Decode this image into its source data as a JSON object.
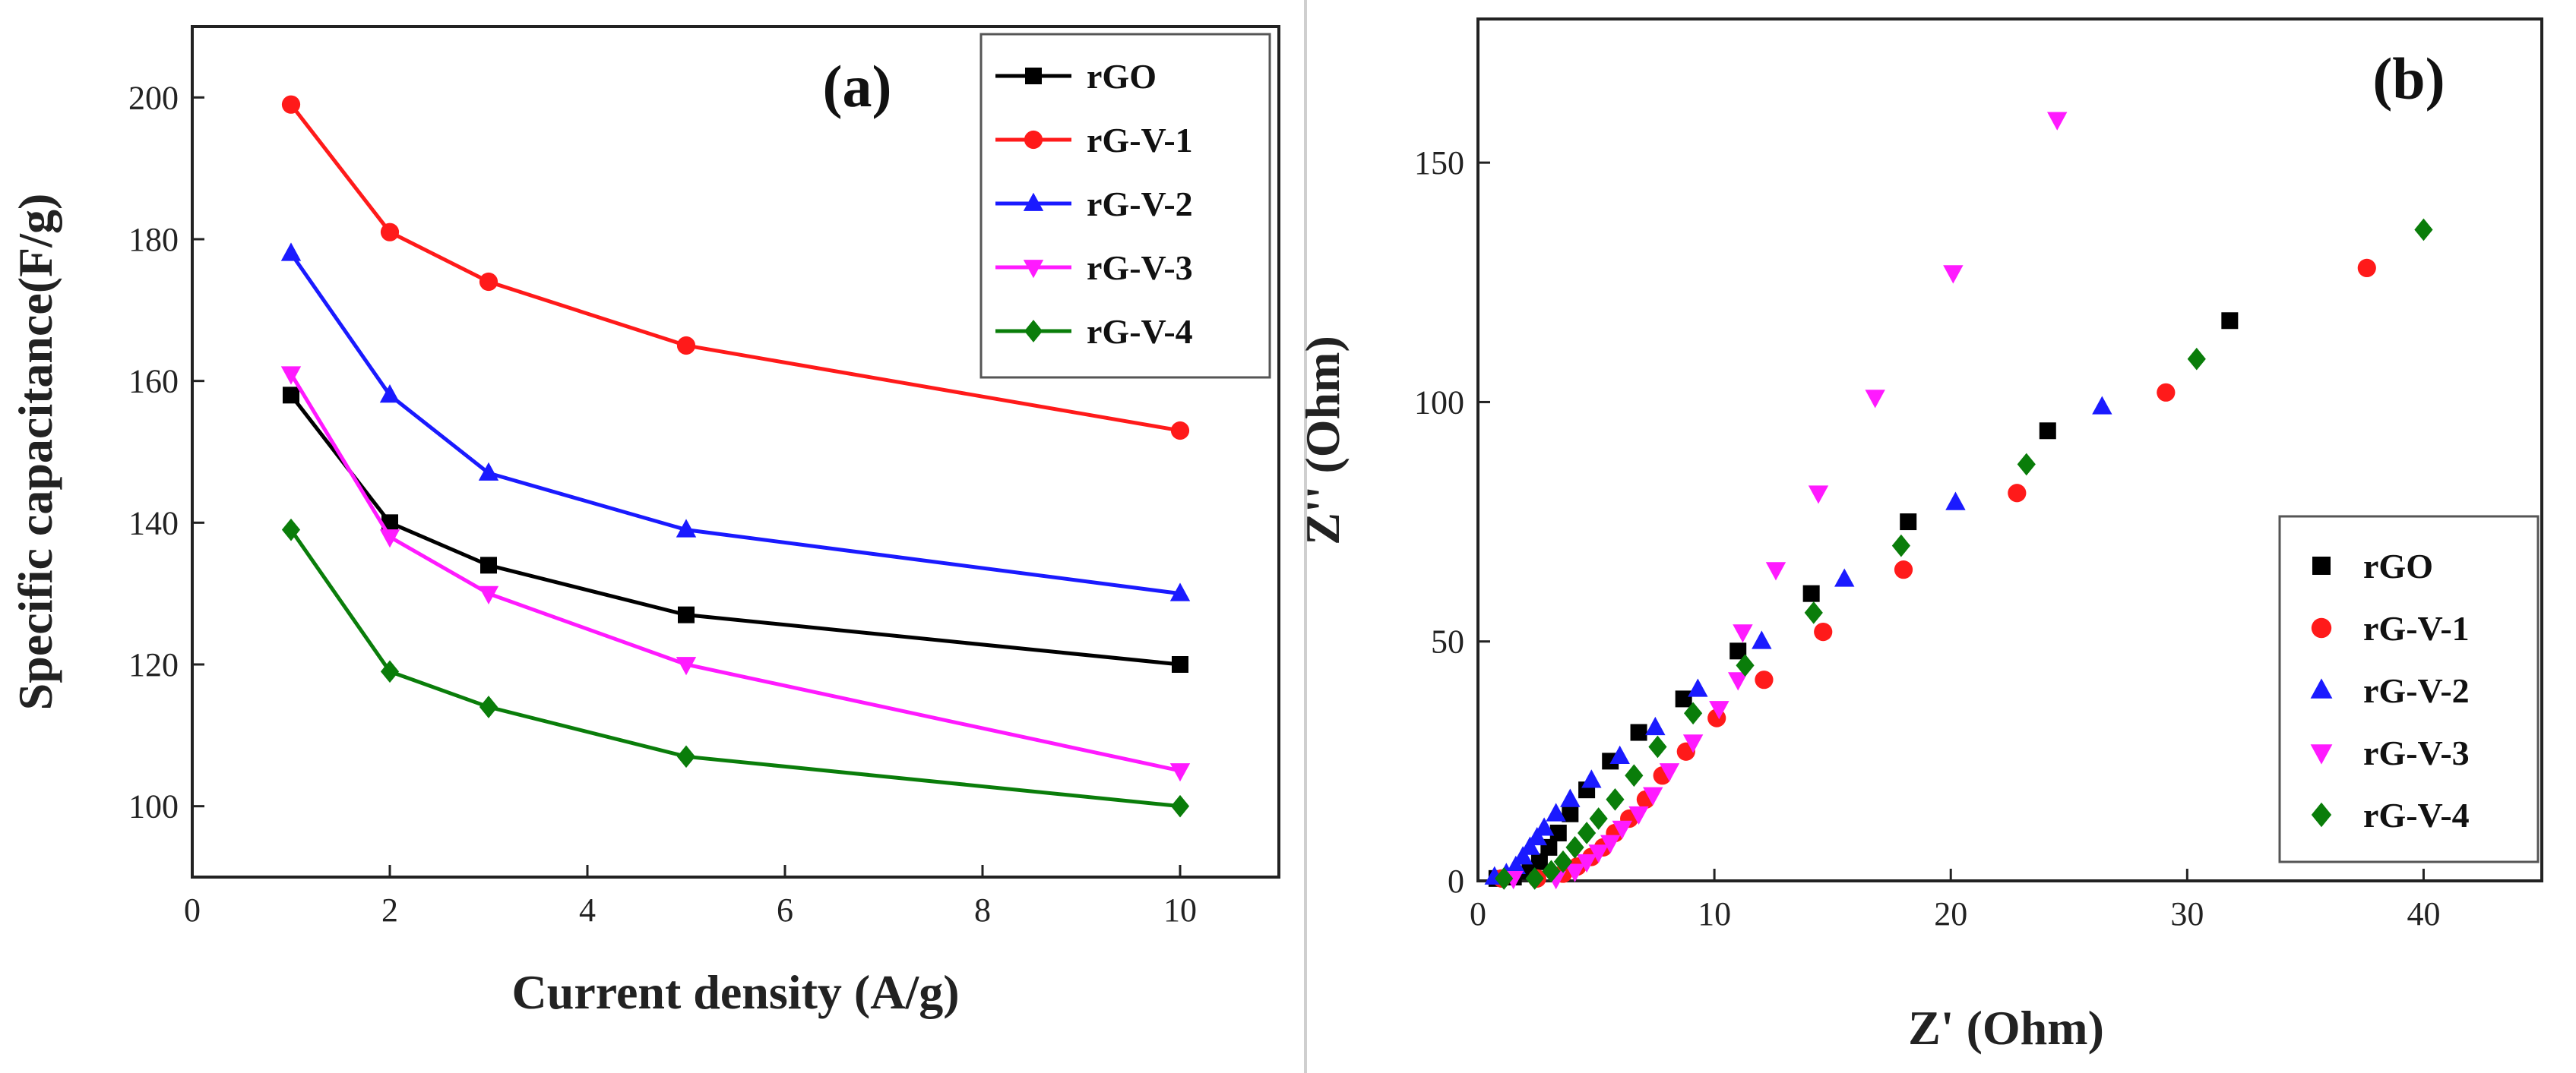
{
  "chart_data": [
    {
      "type": "line",
      "panel_label": "(a)",
      "xlabel": "Current density (A/g)",
      "ylabel": "Specific capacitance(F/g)",
      "xlim": [
        0,
        11
      ],
      "ylim": [
        90,
        210
      ],
      "xticks": [
        0,
        2,
        4,
        6,
        8,
        10
      ],
      "yticks": [
        100,
        120,
        140,
        160,
        180,
        200
      ],
      "x": [
        1,
        2,
        3,
        5,
        10
      ],
      "legend_position": "top-right",
      "series": [
        {
          "name": "rGO",
          "color": "#000000",
          "marker": "square",
          "values": [
            158,
            140,
            134,
            127,
            120
          ]
        },
        {
          "name": "rG-V-1",
          "color": "#ff1a1a",
          "marker": "circle",
          "values": [
            199,
            181,
            174,
            165,
            153
          ]
        },
        {
          "name": "rG-V-2",
          "color": "#1a1aff",
          "marker": "triangle-up",
          "values": [
            178,
            158,
            147,
            139,
            130
          ]
        },
        {
          "name": "rG-V-3",
          "color": "#ff1aff",
          "marker": "triangle-down",
          "values": [
            161,
            138,
            130,
            120,
            105
          ]
        },
        {
          "name": "rG-V-4",
          "color": "#0a7d0a",
          "marker": "diamond",
          "values": [
            139,
            119,
            114,
            107,
            100
          ]
        }
      ]
    },
    {
      "type": "scatter",
      "panel_label": "(b)",
      "xlabel": "Z' (Ohm)",
      "ylabel": "Z'' (Ohm)",
      "xlim": [
        0,
        45
      ],
      "ylim": [
        0,
        180
      ],
      "xticks": [
        0,
        10,
        20,
        30,
        40
      ],
      "yticks": [
        0,
        50,
        100,
        150
      ],
      "legend_position": "bottom-right",
      "series": [
        {
          "name": "rGO",
          "color": "#000000",
          "marker": "square",
          "points": [
            [
              0.8,
              0.5
            ],
            [
              1.5,
              0.8
            ],
            [
              2.2,
              2
            ],
            [
              2.6,
              4
            ],
            [
              3.0,
              7
            ],
            [
              3.4,
              10
            ],
            [
              3.9,
              14
            ],
            [
              4.6,
              19
            ],
            [
              5.6,
              25
            ],
            [
              6.8,
              31
            ],
            [
              8.7,
              38
            ],
            [
              11,
              48
            ],
            [
              14.1,
              60
            ],
            [
              18.2,
              75
            ],
            [
              24.1,
              94
            ],
            [
              31.8,
              117
            ]
          ]
        },
        {
          "name": "rG-V-1",
          "color": "#ff1a1a",
          "marker": "circle",
          "points": [
            [
              1.0,
              0.5
            ],
            [
              2.5,
              0.5
            ],
            [
              3.6,
              1.5
            ],
            [
              4.2,
              3
            ],
            [
              4.8,
              5
            ],
            [
              5.3,
              7
            ],
            [
              5.8,
              10
            ],
            [
              6.4,
              13
            ],
            [
              7.1,
              17
            ],
            [
              7.8,
              22
            ],
            [
              8.8,
              27
            ],
            [
              10.1,
              34
            ],
            [
              12.1,
              42
            ],
            [
              14.6,
              52
            ],
            [
              18,
              65
            ],
            [
              22.8,
              81
            ],
            [
              29.1,
              102
            ],
            [
              37.6,
              128
            ]
          ]
        },
        {
          "name": "rG-V-2",
          "color": "#1a1aff",
          "marker": "triangle-up",
          "points": [
            [
              0.7,
              0.8
            ],
            [
              1.2,
              1.5
            ],
            [
              1.6,
              3
            ],
            [
              1.9,
              5
            ],
            [
              2.2,
              7
            ],
            [
              2.5,
              9
            ],
            [
              2.8,
              11
            ],
            [
              3.3,
              14
            ],
            [
              3.9,
              17
            ],
            [
              4.8,
              21
            ],
            [
              6,
              26
            ],
            [
              7.5,
              32
            ],
            [
              9.3,
              40
            ],
            [
              12,
              50
            ],
            [
              15.5,
              63
            ],
            [
              20.2,
              79
            ],
            [
              26.4,
              99
            ]
          ]
        },
        {
          "name": "rG-V-3",
          "color": "#ff1aff",
          "marker": "triangle-down",
          "points": [
            [
              1.5,
              0.5
            ],
            [
              3.3,
              0.5
            ],
            [
              4.1,
              2
            ],
            [
              4.6,
              4
            ],
            [
              5.1,
              6
            ],
            [
              5.6,
              8
            ],
            [
              6.1,
              11
            ],
            [
              6.8,
              14
            ],
            [
              7.4,
              18
            ],
            [
              8.1,
              23
            ],
            [
              9.1,
              29
            ],
            [
              10.2,
              36
            ],
            [
              11.0,
              42
            ],
            [
              11.2,
              52
            ],
            [
              12.6,
              65
            ],
            [
              14.4,
              81
            ],
            [
              16.8,
              101
            ],
            [
              20.1,
              127
            ],
            [
              24.5,
              159
            ]
          ]
        },
        {
          "name": "rG-V-4",
          "color": "#0a7d0a",
          "marker": "diamond",
          "points": [
            [
              1.1,
              0.5
            ],
            [
              2.4,
              0.5
            ],
            [
              3.1,
              2
            ],
            [
              3.6,
              4
            ],
            [
              4.1,
              7
            ],
            [
              4.6,
              10
            ],
            [
              5.1,
              13
            ],
            [
              5.8,
              17
            ],
            [
              6.6,
              22
            ],
            [
              7.6,
              28
            ],
            [
              9.1,
              35
            ],
            [
              11.3,
              45
            ],
            [
              14.2,
              56
            ],
            [
              17.9,
              70
            ],
            [
              23.2,
              87
            ],
            [
              30.4,
              109
            ],
            [
              40.0,
              136
            ]
          ]
        }
      ]
    }
  ]
}
